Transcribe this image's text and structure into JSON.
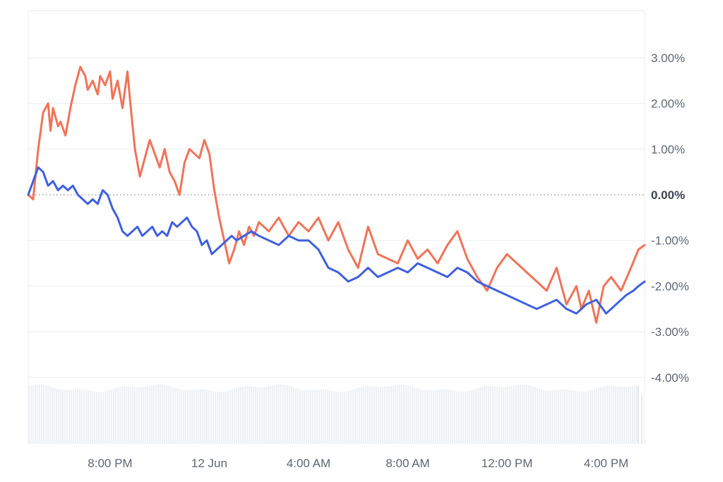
{
  "chart_data": {
    "type": "line",
    "title": "",
    "xlabel": "",
    "ylabel": "",
    "ylim": [
      -4.4,
      4.1
    ],
    "y_ticks": [
      {
        "value": 3,
        "label": "3.00%"
      },
      {
        "value": 2,
        "label": "2.00%"
      },
      {
        "value": 1,
        "label": "1.00%"
      },
      {
        "value": 0,
        "label": "0.00%"
      },
      {
        "value": -1,
        "label": "-1.00%"
      },
      {
        "value": -2,
        "label": "-2.00%"
      },
      {
        "value": -3,
        "label": "-3.00%"
      },
      {
        "value": -4,
        "label": "-4.00%"
      }
    ],
    "x_ticks": [
      {
        "hour": 20,
        "label": "8:00 PM"
      },
      {
        "hour": 24,
        "label": "12 Jun"
      },
      {
        "hour": 28,
        "label": "4:00 AM"
      },
      {
        "hour": 32,
        "label": "8:00 AM"
      },
      {
        "hour": 36,
        "label": "12:00 PM"
      },
      {
        "hour": 40,
        "label": "4:00 PM"
      }
    ],
    "xlim_hours": [
      16.7,
      41.55
    ],
    "baseline": 0,
    "grid": true,
    "volume_bars": true,
    "colors": {
      "series_a": "#f07358",
      "series_b": "#3f5fe0",
      "grid": "#eceef1",
      "baseline": "#8a8f99",
      "volume": "#eef1f4"
    },
    "series": [
      {
        "color": "#f07358",
        "x": [
          16.7,
          16.9,
          17.1,
          17.3,
          17.5,
          17.6,
          17.7,
          17.9,
          18.0,
          18.2,
          18.4,
          18.6,
          18.8,
          19.0,
          19.1,
          19.3,
          19.5,
          19.6,
          19.8,
          20.0,
          20.1,
          20.3,
          20.5,
          20.7,
          20.8,
          21.0,
          21.2,
          21.4,
          21.6,
          21.8,
          22.0,
          22.2,
          22.4,
          22.6,
          22.8,
          23.0,
          23.2,
          23.4,
          23.6,
          23.8,
          24.0,
          24.2,
          24.4,
          24.6,
          24.8,
          25.0,
          25.2,
          25.4,
          25.6,
          25.8,
          26.0,
          26.4,
          26.8,
          27.2,
          27.6,
          28.0,
          28.4,
          28.8,
          29.2,
          29.6,
          30.0,
          30.4,
          30.8,
          31.2,
          31.6,
          32.0,
          32.4,
          32.8,
          33.2,
          33.6,
          34.0,
          34.4,
          34.8,
          35.2,
          35.6,
          36.0,
          36.4,
          36.8,
          37.2,
          37.6,
          38.0,
          38.4,
          38.8,
          39.0,
          39.3,
          39.6,
          39.9,
          40.2,
          40.6,
          41.0,
          41.3,
          41.55
        ],
        "values": [
          0.0,
          -0.1,
          1.0,
          1.8,
          2.0,
          1.4,
          1.9,
          1.5,
          1.6,
          1.3,
          1.9,
          2.4,
          2.8,
          2.6,
          2.3,
          2.5,
          2.2,
          2.6,
          2.4,
          2.7,
          2.1,
          2.5,
          1.9,
          2.7,
          2.1,
          1.0,
          0.4,
          0.8,
          1.2,
          0.9,
          0.6,
          1.0,
          0.5,
          0.3,
          0.0,
          0.7,
          1.0,
          0.9,
          0.8,
          1.2,
          0.9,
          0.1,
          -0.5,
          -1.0,
          -1.5,
          -1.2,
          -0.8,
          -1.1,
          -0.7,
          -0.9,
          -0.6,
          -0.8,
          -0.5,
          -0.9,
          -0.6,
          -0.8,
          -0.5,
          -1.0,
          -0.6,
          -1.2,
          -1.6,
          -0.7,
          -1.3,
          -1.4,
          -1.5,
          -1.0,
          -1.4,
          -1.2,
          -1.5,
          -1.1,
          -0.8,
          -1.4,
          -1.8,
          -2.1,
          -1.6,
          -1.3,
          -1.5,
          -1.7,
          -1.9,
          -2.1,
          -1.6,
          -2.4,
          -2.0,
          -2.5,
          -2.1,
          -2.8,
          -2.0,
          -1.8,
          -2.1,
          -1.6,
          -1.2,
          -1.1
        ]
      },
      {
        "color": "#3f5fe0",
        "x": [
          16.7,
          16.9,
          17.1,
          17.3,
          17.5,
          17.7,
          17.9,
          18.1,
          18.3,
          18.5,
          18.7,
          18.9,
          19.1,
          19.3,
          19.5,
          19.7,
          19.9,
          20.1,
          20.3,
          20.5,
          20.7,
          20.9,
          21.1,
          21.3,
          21.5,
          21.7,
          21.9,
          22.1,
          22.3,
          22.5,
          22.7,
          22.9,
          23.1,
          23.3,
          23.5,
          23.7,
          23.9,
          24.1,
          24.3,
          24.5,
          24.7,
          24.9,
          25.1,
          25.4,
          25.7,
          26.0,
          26.4,
          26.8,
          27.2,
          27.6,
          28.0,
          28.4,
          28.8,
          29.2,
          29.6,
          30.0,
          30.4,
          30.8,
          31.2,
          31.6,
          32.0,
          32.4,
          32.8,
          33.2,
          33.6,
          34.0,
          34.4,
          34.8,
          35.2,
          35.6,
          36.0,
          36.4,
          36.8,
          37.2,
          37.6,
          38.0,
          38.4,
          38.8,
          39.2,
          39.6,
          40.0,
          40.4,
          40.8,
          41.1,
          41.3,
          41.55
        ],
        "values": [
          0.0,
          0.3,
          0.6,
          0.5,
          0.2,
          0.3,
          0.1,
          0.2,
          0.1,
          0.2,
          0.0,
          -0.1,
          -0.2,
          -0.1,
          -0.2,
          0.1,
          0.0,
          -0.3,
          -0.5,
          -0.8,
          -0.9,
          -0.8,
          -0.7,
          -0.9,
          -0.8,
          -0.7,
          -0.9,
          -0.8,
          -0.9,
          -0.6,
          -0.7,
          -0.6,
          -0.5,
          -0.7,
          -0.8,
          -1.1,
          -1.0,
          -1.3,
          -1.2,
          -1.1,
          -1.0,
          -0.9,
          -1.0,
          -0.9,
          -0.8,
          -0.9,
          -1.0,
          -1.1,
          -0.9,
          -1.0,
          -1.0,
          -1.2,
          -1.6,
          -1.7,
          -1.9,
          -1.8,
          -1.6,
          -1.8,
          -1.7,
          -1.6,
          -1.7,
          -1.5,
          -1.6,
          -1.7,
          -1.8,
          -1.6,
          -1.7,
          -1.9,
          -2.0,
          -2.1,
          -2.2,
          -2.3,
          -2.4,
          -2.5,
          -2.4,
          -2.3,
          -2.5,
          -2.6,
          -2.4,
          -2.3,
          -2.6,
          -2.4,
          -2.2,
          -2.1,
          -2.0,
          -1.9
        ]
      }
    ]
  }
}
